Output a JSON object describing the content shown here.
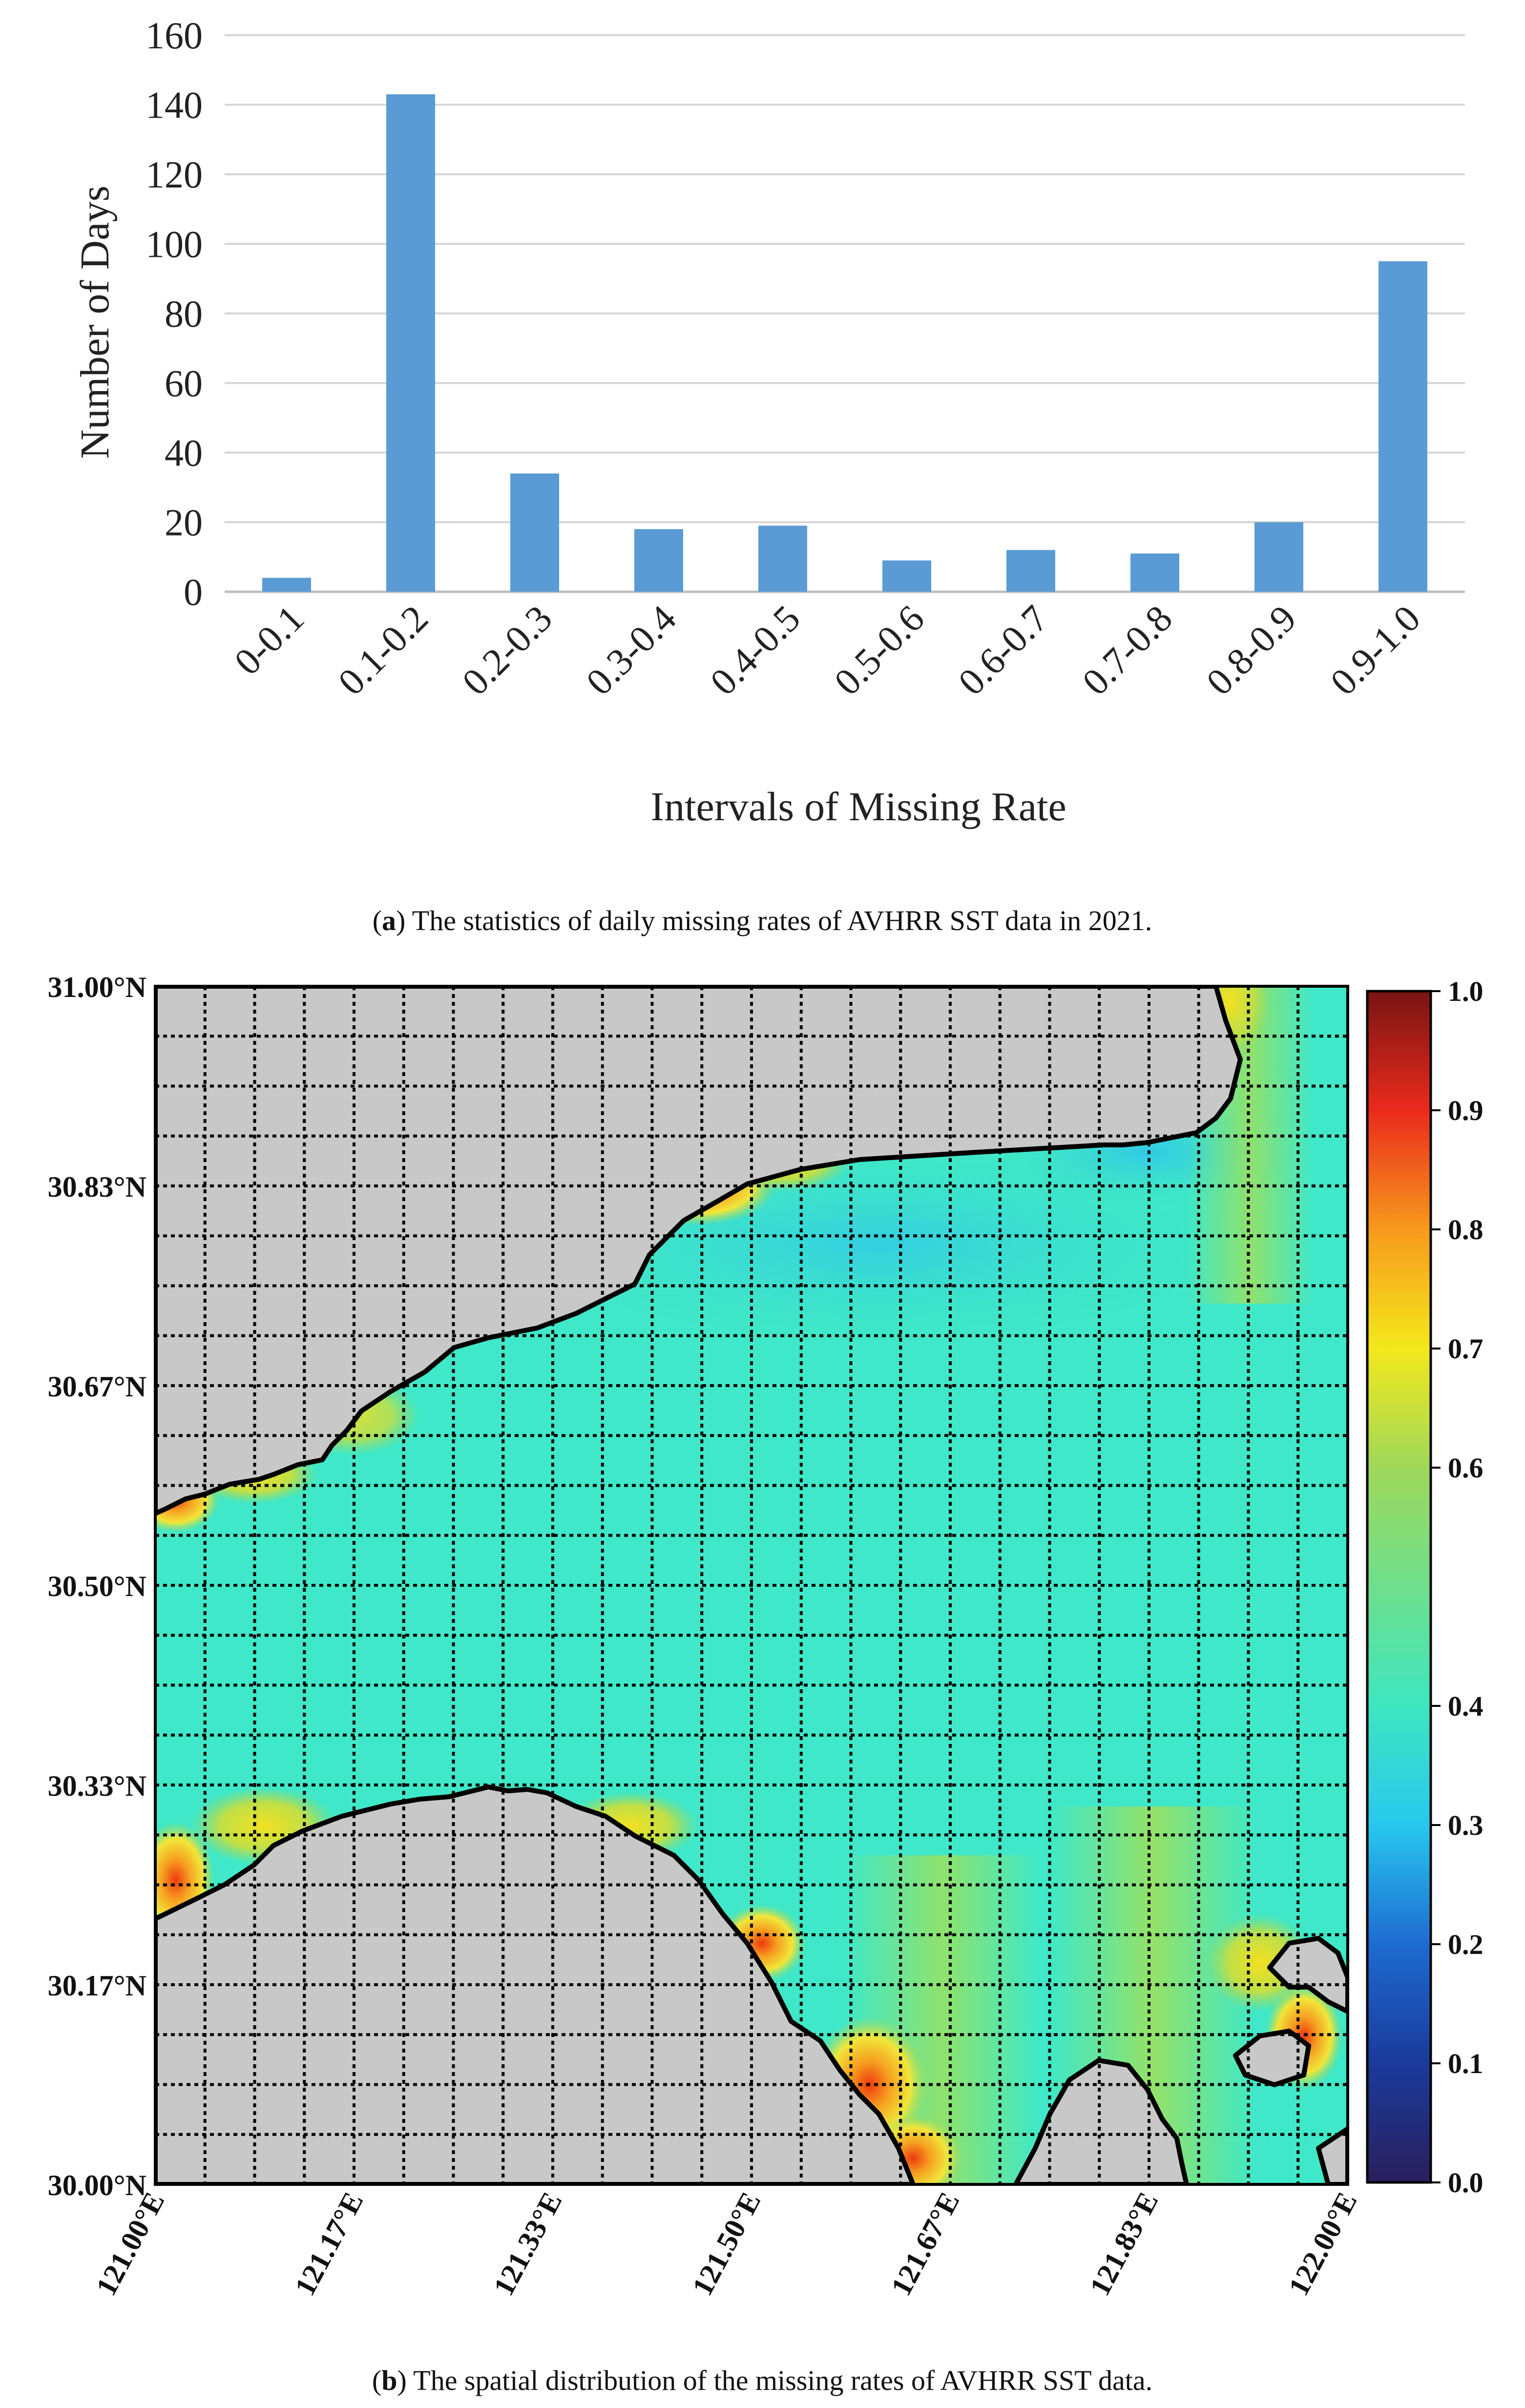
{
  "chart_data": [
    {
      "type": "bar",
      "panel": "a",
      "title": "",
      "xlabel": "Intervals of Missing Rate",
      "ylabel": "Number of Days",
      "categories": [
        "0-0.1",
        "0.1-0.2",
        "0.2-0.3",
        "0.3-0.4",
        "0.4-0.5",
        "0.5-0.6",
        "0.6-0.7",
        "0.7-0.8",
        "0.8-0.9",
        "0.9-1.0"
      ],
      "values": [
        4,
        143,
        34,
        18,
        19,
        9,
        12,
        11,
        20,
        95
      ],
      "ylim": [
        0,
        160
      ],
      "yticks": [
        "0",
        "20",
        "40",
        "60",
        "80",
        "100",
        "120",
        "140",
        "160"
      ],
      "grid": true,
      "bar_color": "#5b9bd5"
    },
    {
      "type": "heatmap",
      "panel": "b",
      "title": "",
      "x_range": [
        121.0,
        122.0
      ],
      "y_range": [
        30.0,
        31.0
      ],
      "xticks": [
        "121.00°E",
        "121.17°E",
        "121.33°E",
        "121.50°E",
        "121.67°E",
        "121.83°E",
        "122.00°E"
      ],
      "yticks": [
        "30.00°N",
        "30.17°N",
        "30.33°N",
        "30.50°N",
        "30.67°N",
        "30.83°N",
        "31.00°N"
      ],
      "colorbar_range": [
        0.0,
        1.0
      ],
      "colorbar_ticks": [
        "0.0",
        "0.1",
        "0.2",
        "0.3",
        "0.4",
        "0.6",
        "0.7",
        "0.8",
        "0.9",
        "1.0"
      ],
      "land_color": "#c8c8c8",
      "sea_color": "#3fe8c8"
    }
  ],
  "captions": {
    "a_label": "a",
    "a_text": " The statistics of daily missing rates of AVHRR SST data in 2021.",
    "b_label": "b",
    "b_text": " The spatial distribution of the missing rates of AVHRR SST data."
  }
}
